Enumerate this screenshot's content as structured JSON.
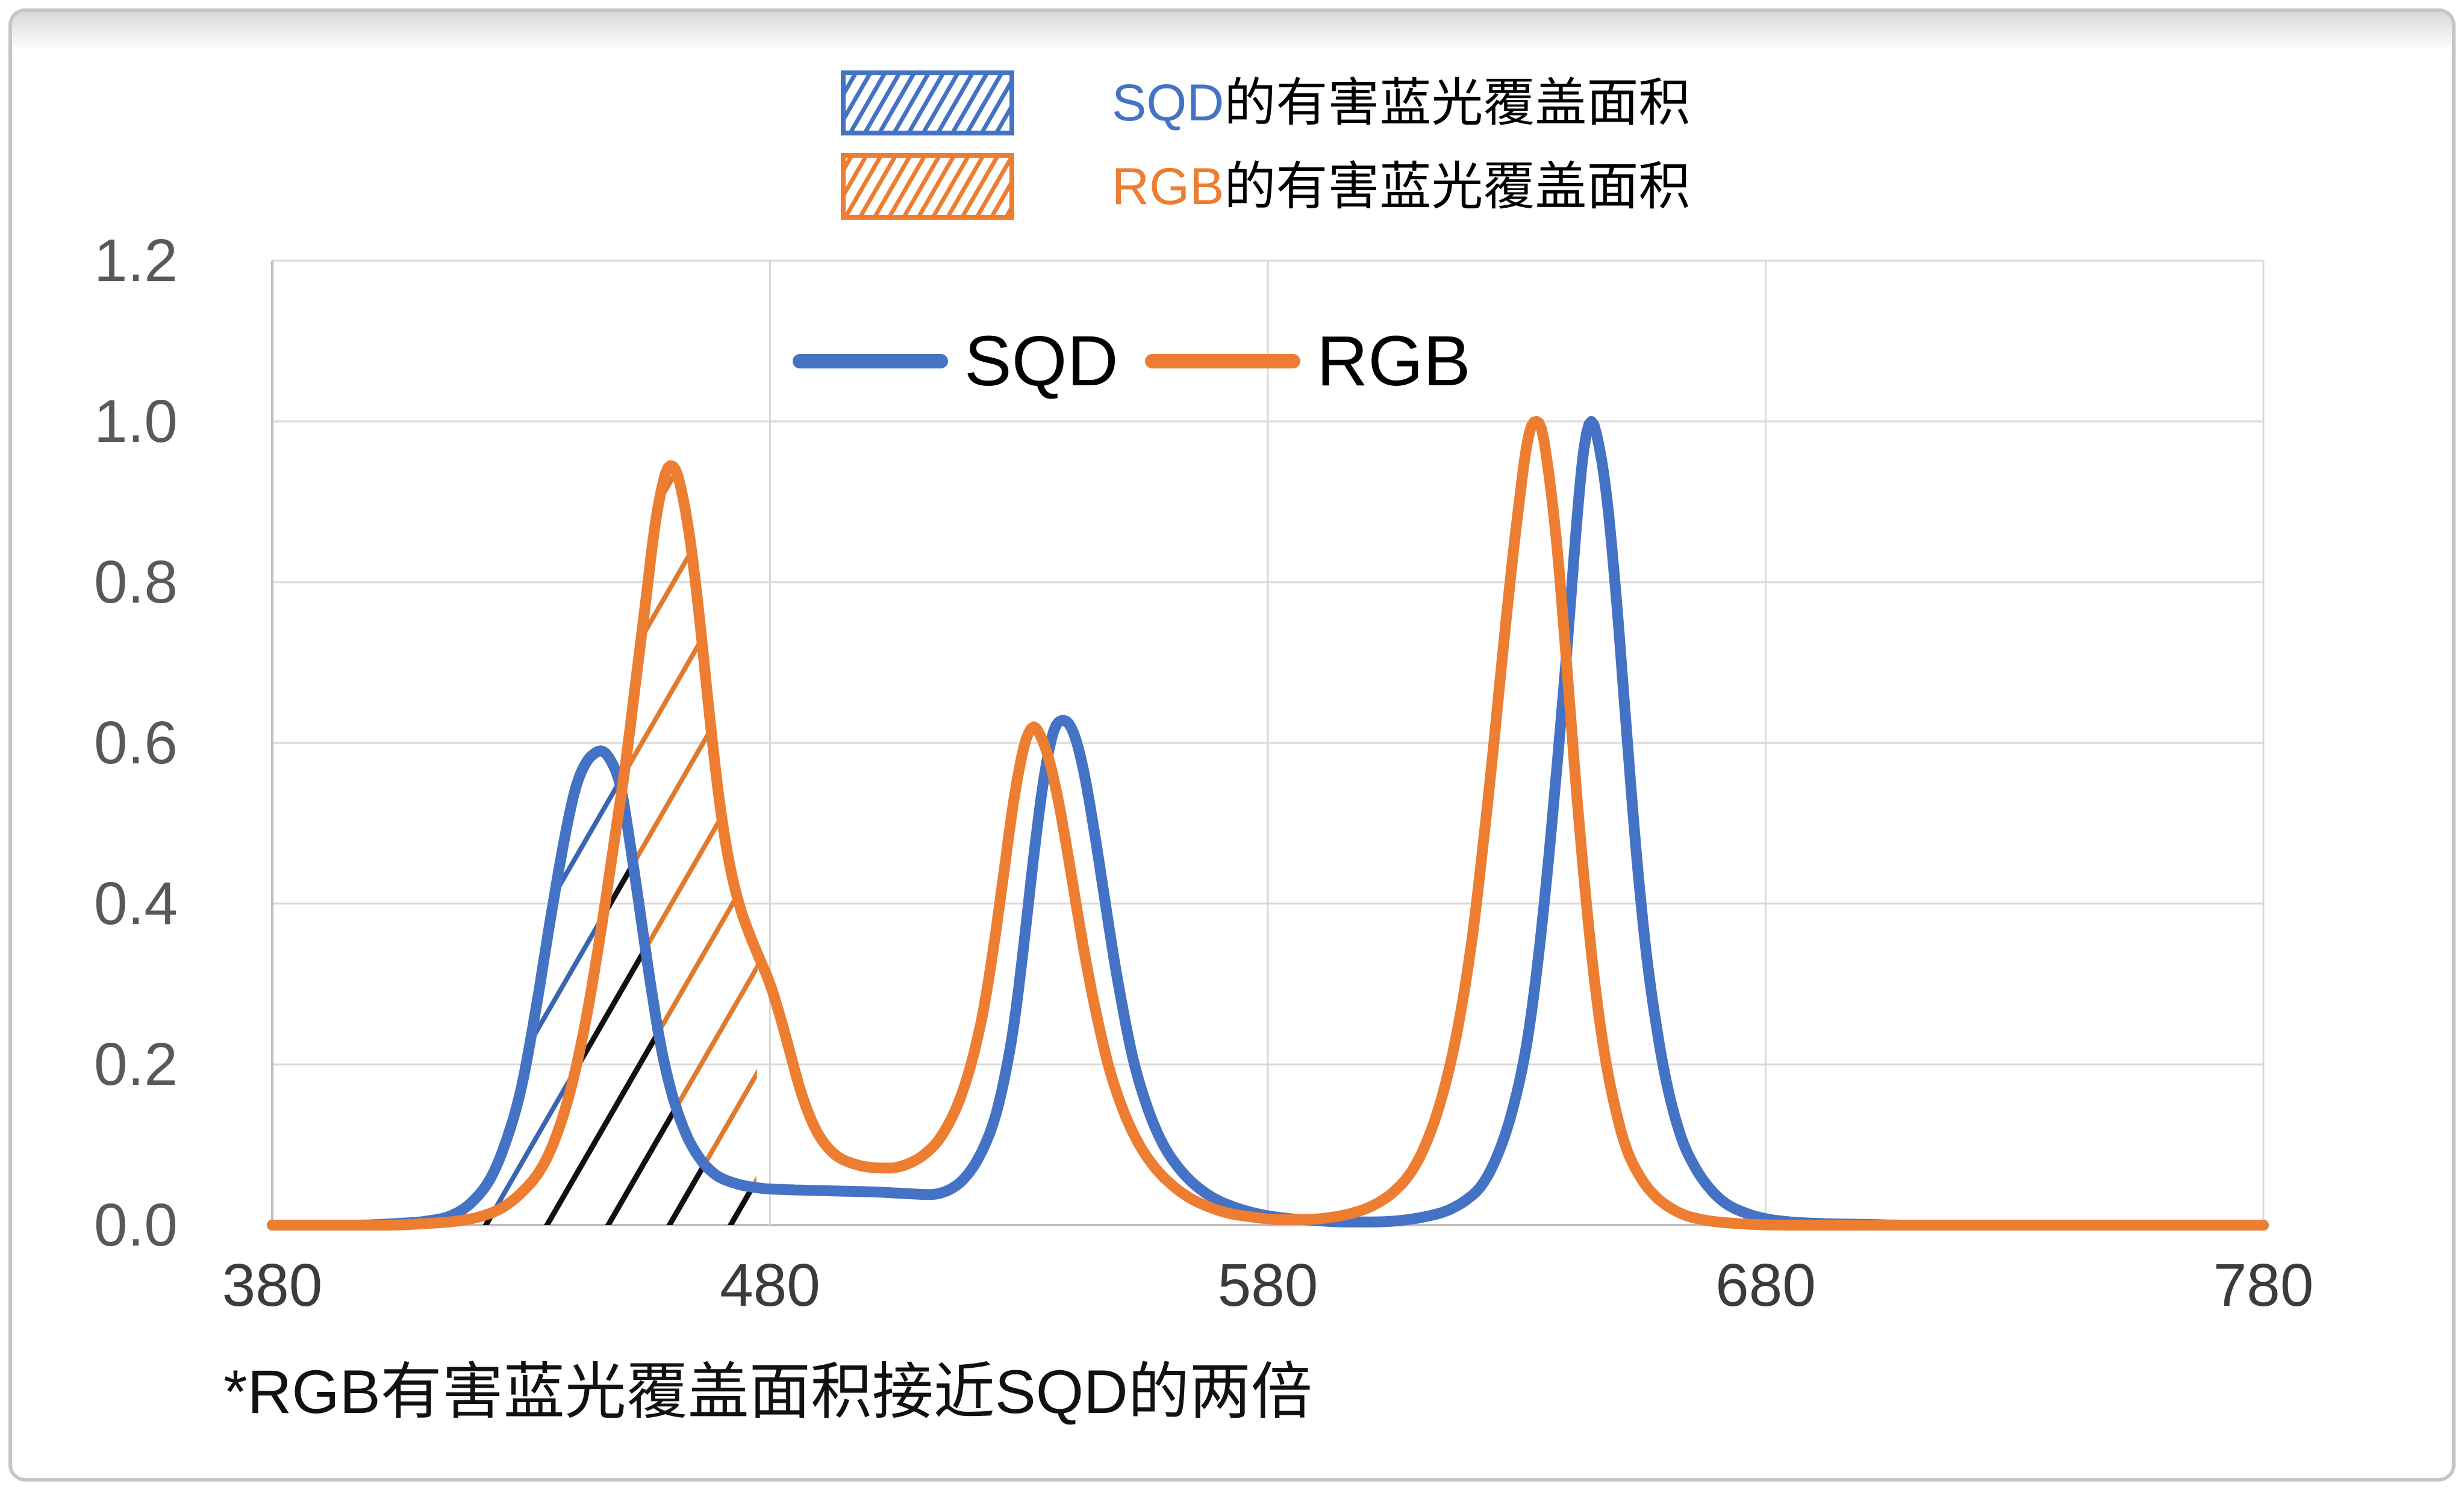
{
  "legend_top": {
    "items": [
      {
        "prefix": "SQD",
        "suffix": "的有害蓝光覆盖面积",
        "color": "#4472C4",
        "swatch": "blue-hatch"
      },
      {
        "prefix": "RGB",
        "suffix": "的有害蓝光覆盖面积",
        "color": "#ED7D31",
        "swatch": "orange-hatch"
      }
    ]
  },
  "series_legend": {
    "sqd_label": "SQD",
    "rgb_label": "RGB"
  },
  "footnote": "*RGB有害蓝光覆盖面积接近SQD的两倍",
  "colors": {
    "sqd": "#4472C4",
    "rgb": "#ED7D31",
    "hatch_overlap": "#111111",
    "grid": "#D9D9D9",
    "axis": "#BFBFBF",
    "xtick": "#3B3B3B",
    "ytick": "#595959"
  },
  "chart_data": {
    "type": "line",
    "title": "",
    "xlabel": "",
    "ylabel": "",
    "xlim": [
      380,
      780
    ],
    "ylim": [
      0,
      1.2
    ],
    "x_ticks": [
      380,
      480,
      580,
      680,
      780
    ],
    "y_ticks": [
      0.0,
      0.2,
      0.4,
      0.6,
      0.8,
      1.0,
      1.2
    ],
    "y_tick_labels": [
      "0.0",
      "0.2",
      "0.4",
      "0.6",
      "0.8",
      "1.0",
      "1.2"
    ],
    "grid": true,
    "legend_position": "top-inside",
    "hatch_region": {
      "x_start": 410,
      "x_end": 477.5
    },
    "series": [
      {
        "name": "SQD",
        "color": "#4472C4",
        "points": [
          [
            380,
            0
          ],
          [
            397,
            0
          ],
          [
            405,
            0.002
          ],
          [
            411,
            0.005
          ],
          [
            416,
            0.012
          ],
          [
            420,
            0.028
          ],
          [
            424,
            0.06
          ],
          [
            427,
            0.105
          ],
          [
            430,
            0.17
          ],
          [
            433,
            0.27
          ],
          [
            436,
            0.385
          ],
          [
            439,
            0.49
          ],
          [
            441,
            0.545
          ],
          [
            443,
            0.575
          ],
          [
            445,
            0.588
          ],
          [
            446,
            0.59
          ],
          [
            448,
            0.578
          ],
          [
            450,
            0.545
          ],
          [
            452,
            0.47
          ],
          [
            454,
            0.385
          ],
          [
            456,
            0.3
          ],
          [
            458,
            0.225
          ],
          [
            460,
            0.17
          ],
          [
            463,
            0.115
          ],
          [
            466,
            0.082
          ],
          [
            469,
            0.063
          ],
          [
            473,
            0.052
          ],
          [
            478,
            0.046
          ],
          [
            484,
            0.044
          ],
          [
            490,
            0.043
          ],
          [
            496,
            0.042
          ],
          [
            502,
            0.041
          ],
          [
            508,
            0.039
          ],
          [
            512,
            0.038
          ],
          [
            516,
            0.044
          ],
          [
            519,
            0.058
          ],
          [
            522,
            0.085
          ],
          [
            525,
            0.13
          ],
          [
            527,
            0.18
          ],
          [
            529,
            0.25
          ],
          [
            531,
            0.35
          ],
          [
            533,
            0.46
          ],
          [
            535,
            0.555
          ],
          [
            537,
            0.615
          ],
          [
            539,
            0.628
          ],
          [
            541,
            0.612
          ],
          [
            543,
            0.565
          ],
          [
            545,
            0.495
          ],
          [
            547,
            0.415
          ],
          [
            549,
            0.335
          ],
          [
            551,
            0.265
          ],
          [
            553,
            0.205
          ],
          [
            556,
            0.143
          ],
          [
            559,
            0.1
          ],
          [
            562,
            0.072
          ],
          [
            565,
            0.052
          ],
          [
            569,
            0.034
          ],
          [
            573,
            0.023
          ],
          [
            578,
            0.014
          ],
          [
            583,
            0.009
          ],
          [
            589,
            0.006
          ],
          [
            595,
            0.004
          ],
          [
            601,
            0.004
          ],
          [
            607,
            0.006
          ],
          [
            612,
            0.011
          ],
          [
            616,
            0.018
          ],
          [
            620,
            0.032
          ],
          [
            623,
            0.05
          ],
          [
            626,
            0.085
          ],
          [
            629,
            0.14
          ],
          [
            632,
            0.225
          ],
          [
            634,
            0.315
          ],
          [
            636,
            0.43
          ],
          [
            638,
            0.565
          ],
          [
            640,
            0.71
          ],
          [
            642,
            0.87
          ],
          [
            643,
            0.94
          ],
          [
            644,
            0.985
          ],
          [
            645,
            1.0
          ],
          [
            646,
            0.985
          ],
          [
            648,
            0.91
          ],
          [
            650,
            0.78
          ],
          [
            652,
            0.62
          ],
          [
            654,
            0.465
          ],
          [
            656,
            0.34
          ],
          [
            658,
            0.25
          ],
          [
            660,
            0.18
          ],
          [
            663,
            0.11
          ],
          [
            666,
            0.07
          ],
          [
            669,
            0.044
          ],
          [
            672,
            0.027
          ],
          [
            676,
            0.015
          ],
          [
            680,
            0.008
          ],
          [
            685,
            0.004
          ],
          [
            691,
            0.002
          ],
          [
            699,
            0.001
          ],
          [
            708,
            0
          ],
          [
            780,
            0
          ]
        ]
      },
      {
        "name": "RGB",
        "color": "#ED7D31",
        "points": [
          [
            380,
            0
          ],
          [
            403,
            0
          ],
          [
            411,
            0.002
          ],
          [
            417,
            0.005
          ],
          [
            422,
            0.011
          ],
          [
            426,
            0.021
          ],
          [
            430,
            0.04
          ],
          [
            434,
            0.07
          ],
          [
            437,
            0.11
          ],
          [
            440,
            0.17
          ],
          [
            443,
            0.255
          ],
          [
            446,
            0.365
          ],
          [
            449,
            0.49
          ],
          [
            451,
            0.575
          ],
          [
            453,
            0.675
          ],
          [
            455,
            0.775
          ],
          [
            457,
            0.875
          ],
          [
            459,
            0.935
          ],
          [
            460,
            0.945
          ],
          [
            461,
            0.94
          ],
          [
            462,
            0.92
          ],
          [
            464,
            0.85
          ],
          [
            466,
            0.745
          ],
          [
            468,
            0.625
          ],
          [
            470,
            0.52
          ],
          [
            472,
            0.445
          ],
          [
            474,
            0.395
          ],
          [
            476,
            0.36
          ],
          [
            478,
            0.33
          ],
          [
            480,
            0.3
          ],
          [
            482,
            0.26
          ],
          [
            484,
            0.215
          ],
          [
            486,
            0.17
          ],
          [
            488,
            0.135
          ],
          [
            490,
            0.11
          ],
          [
            493,
            0.088
          ],
          [
            496,
            0.078
          ],
          [
            500,
            0.072
          ],
          [
            504,
            0.071
          ],
          [
            508,
            0.077
          ],
          [
            511,
            0.088
          ],
          [
            514,
            0.107
          ],
          [
            517,
            0.14
          ],
          [
            519,
            0.172
          ],
          [
            521,
            0.215
          ],
          [
            523,
            0.272
          ],
          [
            525,
            0.35
          ],
          [
            527,
            0.44
          ],
          [
            529,
            0.53
          ],
          [
            531,
            0.595
          ],
          [
            532,
            0.613
          ],
          [
            533,
            0.62
          ],
          [
            534,
            0.613
          ],
          [
            536,
            0.58
          ],
          [
            538,
            0.525
          ],
          [
            540,
            0.455
          ],
          [
            542,
            0.38
          ],
          [
            544,
            0.31
          ],
          [
            546,
            0.25
          ],
          [
            548,
            0.198
          ],
          [
            551,
            0.142
          ],
          [
            554,
            0.102
          ],
          [
            557,
            0.074
          ],
          [
            560,
            0.054
          ],
          [
            564,
            0.035
          ],
          [
            568,
            0.023
          ],
          [
            572,
            0.015
          ],
          [
            577,
            0.01
          ],
          [
            582,
            0.007
          ],
          [
            587,
            0.007
          ],
          [
            592,
            0.009
          ],
          [
            597,
            0.015
          ],
          [
            601,
            0.024
          ],
          [
            605,
            0.04
          ],
          [
            609,
            0.068
          ],
          [
            612,
            0.105
          ],
          [
            615,
            0.16
          ],
          [
            618,
            0.24
          ],
          [
            621,
            0.355
          ],
          [
            623,
            0.46
          ],
          [
            625,
            0.575
          ],
          [
            627,
            0.7
          ],
          [
            629,
            0.82
          ],
          [
            631,
            0.925
          ],
          [
            632,
            0.97
          ],
          [
            633,
            0.995
          ],
          [
            634,
            1.0
          ],
          [
            635,
            0.99
          ],
          [
            636,
            0.955
          ],
          [
            638,
            0.85
          ],
          [
            640,
            0.7
          ],
          [
            642,
            0.54
          ],
          [
            644,
            0.4
          ],
          [
            646,
            0.285
          ],
          [
            648,
            0.2
          ],
          [
            650,
            0.14
          ],
          [
            652,
            0.096
          ],
          [
            655,
            0.058
          ],
          [
            658,
            0.035
          ],
          [
            661,
            0.021
          ],
          [
            664,
            0.012
          ],
          [
            668,
            0.006
          ],
          [
            672,
            0.003
          ],
          [
            677,
            0.001
          ],
          [
            684,
            0
          ],
          [
            780,
            0
          ]
        ]
      }
    ]
  }
}
